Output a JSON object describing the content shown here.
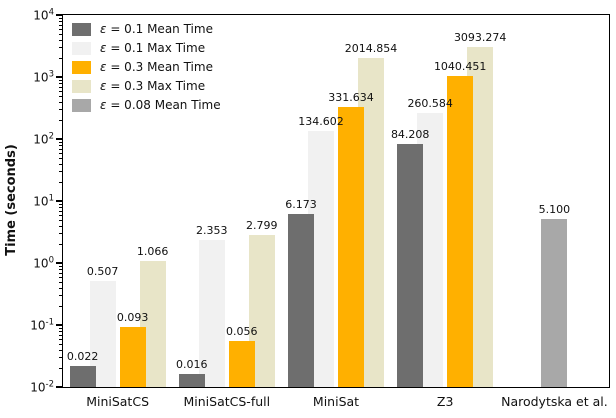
{
  "chart_data": {
    "type": "bar",
    "scale": "log",
    "title": "",
    "xlabel": "",
    "ylabel": "Time (seconds)",
    "ylim_exp": [
      -2,
      4
    ],
    "ytick_exponents": [
      -2,
      -1,
      0,
      1,
      2,
      3,
      4
    ],
    "legend_position": "upper-left",
    "grid": false,
    "categories": [
      "MiniSatCS",
      "MiniSatCS-full",
      "MiniSat",
      "Z3",
      "Narodytska et al."
    ],
    "series": [
      {
        "name": "ε = 0.1 Mean Time",
        "color": "#6e6e6e",
        "role": "mean",
        "pair": 0,
        "values": [
          0.022,
          0.016,
          6.173,
          84.208,
          null
        ]
      },
      {
        "name": "ε = 0.1 Max Time",
        "color": "#f1f1f1",
        "role": "max",
        "pair": 0,
        "values": [
          0.507,
          2.353,
          134.602,
          260.584,
          null
        ]
      },
      {
        "name": "ε = 0.3 Mean Time",
        "color": "#ffb000",
        "role": "mean",
        "pair": 1,
        "values": [
          0.093,
          0.056,
          331.634,
          1040.451,
          null
        ]
      },
      {
        "name": "ε = 0.3 Max Time",
        "color": "#e8e5c8",
        "role": "max",
        "pair": 1,
        "values": [
          1.066,
          2.799,
          2014.854,
          3093.274,
          null
        ]
      },
      {
        "name": "ε = 0.08 Mean Time",
        "color": "#a8a8a8",
        "role": "mean",
        "pair": 2,
        "values": [
          null,
          null,
          null,
          null,
          5.1
        ]
      }
    ],
    "value_label_decimals": 3
  }
}
